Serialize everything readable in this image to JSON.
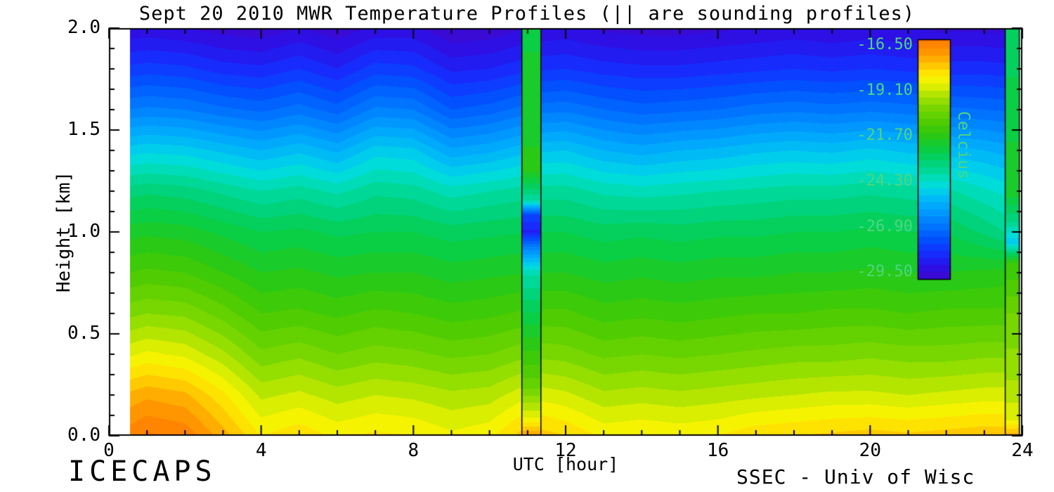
{
  "chart_data": {
    "type": "heatmap",
    "title": "Sept 20 2010 MWR Temperature Profiles (|| are sounding profiles)",
    "xlabel": "UTC [hour]",
    "ylabel": "Height [km]",
    "xlim": [
      0,
      24
    ],
    "ylim": [
      0.0,
      2.0
    ],
    "x_data_range": [
      0.55,
      23.92
    ],
    "x_ticks": [
      {
        "label": "0",
        "value": 0
      },
      {
        "label": "4",
        "value": 4
      },
      {
        "label": "8",
        "value": 8
      },
      {
        "label": "12",
        "value": 12
      },
      {
        "label": "16",
        "value": 16
      },
      {
        "label": "20",
        "value": 20
      },
      {
        "label": "24",
        "value": 24
      }
    ],
    "y_ticks": [
      {
        "label": "0.0",
        "value": 0.0
      },
      {
        "label": "0.5",
        "value": 0.5
      },
      {
        "label": "1.0",
        "value": 1.0
      },
      {
        "label": "1.5",
        "value": 1.5
      },
      {
        "label": "2.0",
        "value": 2.0
      }
    ],
    "x": [
      0,
      1,
      2,
      3,
      4,
      5,
      6,
      7,
      8,
      9,
      10,
      11,
      12,
      13,
      14,
      15,
      16,
      17,
      18,
      19,
      20,
      21,
      22,
      23,
      24
    ],
    "heights": [
      0.0,
      0.2,
      0.4,
      0.6,
      0.8,
      1.0,
      1.2,
      1.4,
      1.6,
      1.8,
      2.0
    ],
    "temps": [
      [
        -16.8,
        -16.2,
        -16.4,
        -17.3,
        -18.3,
        -18.0,
        -18.4,
        -18.2,
        -18.3,
        -18.6,
        -18.4,
        -17.6,
        -17.9,
        -18.4,
        -18.3,
        -18.4,
        -18.3,
        -18.0,
        -17.9,
        -17.8,
        -17.7,
        -17.8,
        -17.7,
        -17.6,
        -17.6
      ],
      [
        -17.6,
        -17.2,
        -17.4,
        -18.2,
        -19.2,
        -19.0,
        -19.3,
        -19.1,
        -19.2,
        -19.4,
        -19.3,
        -18.8,
        -19.0,
        -19.4,
        -19.3,
        -19.4,
        -19.3,
        -19.2,
        -19.1,
        -19.0,
        -19.0,
        -19.1,
        -19.0,
        -18.9,
        -18.9
      ],
      [
        -19.0,
        -18.6,
        -18.8,
        -19.4,
        -20.2,
        -20.0,
        -20.3,
        -20.1,
        -20.2,
        -20.4,
        -20.3,
        -20.0,
        -20.1,
        -20.4,
        -20.3,
        -20.4,
        -20.3,
        -20.2,
        -20.1,
        -20.1,
        -20.0,
        -20.1,
        -20.1,
        -20.0,
        -20.0
      ],
      [
        -20.2,
        -19.9,
        -20.0,
        -20.5,
        -21.1,
        -21.0,
        -21.2,
        -21.0,
        -21.1,
        -21.3,
        -21.2,
        -21.0,
        -21.0,
        -21.3,
        -21.2,
        -21.3,
        -21.2,
        -21.1,
        -21.1,
        -21.0,
        -21.0,
        -21.1,
        -21.0,
        -21.0,
        -21.0
      ],
      [
        -21.2,
        -21.0,
        -21.1,
        -21.5,
        -21.9,
        -21.8,
        -22.0,
        -21.9,
        -21.9,
        -22.1,
        -22.0,
        -21.9,
        -21.9,
        -22.1,
        -22.0,
        -22.1,
        -22.0,
        -22.0,
        -21.9,
        -21.9,
        -21.8,
        -21.9,
        -21.9,
        -21.8,
        -21.7
      ],
      [
        -22.2,
        -22.0,
        -22.1,
        -22.4,
        -22.7,
        -22.6,
        -22.8,
        -22.7,
        -22.7,
        -22.9,
        -22.8,
        -22.7,
        -22.7,
        -22.9,
        -22.8,
        -22.9,
        -22.8,
        -22.8,
        -22.7,
        -22.7,
        -22.6,
        -22.7,
        -22.7,
        -23.2,
        -23.8
      ],
      [
        -23.4,
        -23.2,
        -23.3,
        -23.6,
        -23.9,
        -23.7,
        -24.0,
        -23.6,
        -23.7,
        -24.1,
        -23.9,
        -23.7,
        -23.7,
        -24.0,
        -24.1,
        -24.0,
        -23.9,
        -23.8,
        -23.7,
        -23.7,
        -23.6,
        -23.7,
        -23.8,
        -24.2,
        -24.6
      ],
      [
        -25.0,
        -24.8,
        -24.9,
        -25.2,
        -25.5,
        -25.2,
        -25.6,
        -24.9,
        -25.0,
        -25.8,
        -25.6,
        -25.2,
        -25.1,
        -25.5,
        -25.7,
        -25.5,
        -25.4,
        -25.2,
        -25.1,
        -25.2,
        -25.0,
        -25.2,
        -25.3,
        -25.5,
        -25.8
      ],
      [
        -26.8,
        -26.6,
        -26.7,
        -27.0,
        -27.2,
        -26.9,
        -27.3,
        -26.6,
        -26.7,
        -27.5,
        -27.3,
        -26.9,
        -26.8,
        -27.1,
        -27.3,
        -27.2,
        -27.1,
        -26.9,
        -26.8,
        -26.9,
        -26.8,
        -26.9,
        -27.0,
        -27.1,
        -27.2
      ],
      [
        -28.3,
        -28.1,
        -28.2,
        -28.5,
        -28.6,
        -28.3,
        -28.7,
        -28.1,
        -28.2,
        -28.8,
        -28.7,
        -28.4,
        -28.3,
        -28.5,
        -28.6,
        -28.6,
        -28.5,
        -28.4,
        -28.3,
        -28.4,
        -28.3,
        -28.4,
        -28.5,
        -28.5,
        -28.6
      ],
      [
        -29.5,
        -29.4,
        -29.5,
        -29.7,
        -29.8,
        -29.5,
        -29.8,
        -29.4,
        -29.4,
        -29.9,
        -29.8,
        -29.5,
        -29.4,
        -29.6,
        -29.7,
        -29.7,
        -29.6,
        -29.5,
        -29.4,
        -29.5,
        -29.4,
        -29.5,
        -29.6,
        -29.6,
        -29.7
      ]
    ],
    "soundings": [
      {
        "x_start": 10.85,
        "x_end": 11.35,
        "heights": [
          0.0,
          0.08,
          0.25,
          0.5,
          0.8,
          0.92,
          1.0,
          1.08,
          1.15,
          1.3,
          2.0
        ],
        "temps": [
          -17.0,
          -18.6,
          -20.5,
          -22.0,
          -24.0,
          -26.5,
          -28.8,
          -28.0,
          -24.0,
          -21.8,
          -22.4
        ]
      },
      {
        "x_start": 23.55,
        "x_end": 23.92,
        "heights": [
          0.0,
          0.08,
          0.3,
          0.6,
          0.85,
          0.95,
          1.05,
          1.2,
          1.6,
          2.0
        ],
        "temps": [
          -17.2,
          -18.8,
          -19.6,
          -20.3,
          -21.5,
          -25.0,
          -23.5,
          -22.0,
          -22.5,
          -23.0
        ]
      }
    ],
    "colorbar": {
      "label": "Celcius",
      "min": -29.5,
      "max": -16.5,
      "label_color": "#4fd67f",
      "ticks": [
        {
          "label": "-16.50",
          "value": -16.5
        },
        {
          "label": "-19.10",
          "value": -19.1
        },
        {
          "label": "-21.70",
          "value": -21.7
        },
        {
          "label": "-24.30",
          "value": -24.3
        },
        {
          "label": "-26.90",
          "value": -26.9
        },
        {
          "label": "-29.50",
          "value": -29.5
        }
      ]
    },
    "colormap": [
      [
        -30.0,
        "#4208c8"
      ],
      [
        -29.2,
        "#2b10e8"
      ],
      [
        -28.4,
        "#1430ff"
      ],
      [
        -27.6,
        "#0054ff"
      ],
      [
        -26.8,
        "#0078ff"
      ],
      [
        -26.0,
        "#009cff"
      ],
      [
        -25.2,
        "#00bef5"
      ],
      [
        -24.6,
        "#00dce1"
      ],
      [
        -24.0,
        "#00dcaf"
      ],
      [
        -23.2,
        "#00d273"
      ],
      [
        -22.4,
        "#0ccd3c"
      ],
      [
        -21.6,
        "#2ec80f"
      ],
      [
        -20.8,
        "#55cd00"
      ],
      [
        -20.0,
        "#7dd800"
      ],
      [
        -19.4,
        "#abe300"
      ],
      [
        -18.9,
        "#d9ee00"
      ],
      [
        -18.4,
        "#fdf400"
      ],
      [
        -17.9,
        "#ffd800"
      ],
      [
        -17.4,
        "#ffb400"
      ],
      [
        -16.8,
        "#ff9000"
      ],
      [
        -16.0,
        "#ff7200"
      ]
    ],
    "annotations": {
      "bottom_left": "ICECAPS",
      "bottom_right": "SSEC - Univ of Wisc"
    }
  }
}
